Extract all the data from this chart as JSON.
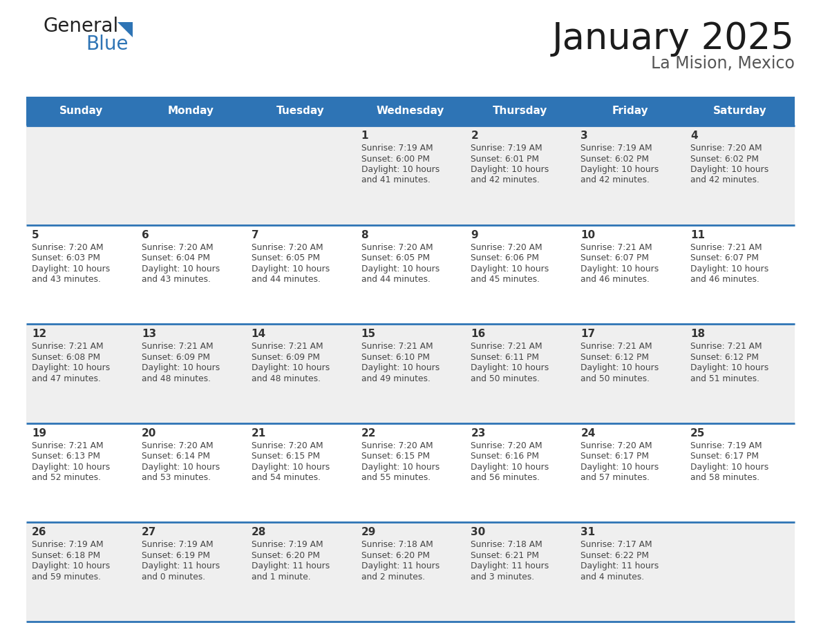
{
  "title": "January 2025",
  "subtitle": "La Mision, Mexico",
  "days_of_week": [
    "Sunday",
    "Monday",
    "Tuesday",
    "Wednesday",
    "Thursday",
    "Friday",
    "Saturday"
  ],
  "header_bg": "#2E74B5",
  "header_text": "#FFFFFF",
  "cell_bg_light": "#EFEFEF",
  "cell_bg_white": "#FFFFFF",
  "row_line_color": "#2E74B5",
  "cell_line_color": "#CCCCCC",
  "text_color": "#444444",
  "day_num_color": "#333333",
  "calendar_data": [
    [
      null,
      null,
      null,
      {
        "day": 1,
        "sunrise": "7:19 AM",
        "sunset": "6:00 PM",
        "daylight": "10 hours",
        "daylight2": "and 41 minutes."
      },
      {
        "day": 2,
        "sunrise": "7:19 AM",
        "sunset": "6:01 PM",
        "daylight": "10 hours",
        "daylight2": "and 42 minutes."
      },
      {
        "day": 3,
        "sunrise": "7:19 AM",
        "sunset": "6:02 PM",
        "daylight": "10 hours",
        "daylight2": "and 42 minutes."
      },
      {
        "day": 4,
        "sunrise": "7:20 AM",
        "sunset": "6:02 PM",
        "daylight": "10 hours",
        "daylight2": "and 42 minutes."
      }
    ],
    [
      {
        "day": 5,
        "sunrise": "7:20 AM",
        "sunset": "6:03 PM",
        "daylight": "10 hours",
        "daylight2": "and 43 minutes."
      },
      {
        "day": 6,
        "sunrise": "7:20 AM",
        "sunset": "6:04 PM",
        "daylight": "10 hours",
        "daylight2": "and 43 minutes."
      },
      {
        "day": 7,
        "sunrise": "7:20 AM",
        "sunset": "6:05 PM",
        "daylight": "10 hours",
        "daylight2": "and 44 minutes."
      },
      {
        "day": 8,
        "sunrise": "7:20 AM",
        "sunset": "6:05 PM",
        "daylight": "10 hours",
        "daylight2": "and 44 minutes."
      },
      {
        "day": 9,
        "sunrise": "7:20 AM",
        "sunset": "6:06 PM",
        "daylight": "10 hours",
        "daylight2": "and 45 minutes."
      },
      {
        "day": 10,
        "sunrise": "7:21 AM",
        "sunset": "6:07 PM",
        "daylight": "10 hours",
        "daylight2": "and 46 minutes."
      },
      {
        "day": 11,
        "sunrise": "7:21 AM",
        "sunset": "6:07 PM",
        "daylight": "10 hours",
        "daylight2": "and 46 minutes."
      }
    ],
    [
      {
        "day": 12,
        "sunrise": "7:21 AM",
        "sunset": "6:08 PM",
        "daylight": "10 hours",
        "daylight2": "and 47 minutes."
      },
      {
        "day": 13,
        "sunrise": "7:21 AM",
        "sunset": "6:09 PM",
        "daylight": "10 hours",
        "daylight2": "and 48 minutes."
      },
      {
        "day": 14,
        "sunrise": "7:21 AM",
        "sunset": "6:09 PM",
        "daylight": "10 hours",
        "daylight2": "and 48 minutes."
      },
      {
        "day": 15,
        "sunrise": "7:21 AM",
        "sunset": "6:10 PM",
        "daylight": "10 hours",
        "daylight2": "and 49 minutes."
      },
      {
        "day": 16,
        "sunrise": "7:21 AM",
        "sunset": "6:11 PM",
        "daylight": "10 hours",
        "daylight2": "and 50 minutes."
      },
      {
        "day": 17,
        "sunrise": "7:21 AM",
        "sunset": "6:12 PM",
        "daylight": "10 hours",
        "daylight2": "and 50 minutes."
      },
      {
        "day": 18,
        "sunrise": "7:21 AM",
        "sunset": "6:12 PM",
        "daylight": "10 hours",
        "daylight2": "and 51 minutes."
      }
    ],
    [
      {
        "day": 19,
        "sunrise": "7:21 AM",
        "sunset": "6:13 PM",
        "daylight": "10 hours",
        "daylight2": "and 52 minutes."
      },
      {
        "day": 20,
        "sunrise": "7:20 AM",
        "sunset": "6:14 PM",
        "daylight": "10 hours",
        "daylight2": "and 53 minutes."
      },
      {
        "day": 21,
        "sunrise": "7:20 AM",
        "sunset": "6:15 PM",
        "daylight": "10 hours",
        "daylight2": "and 54 minutes."
      },
      {
        "day": 22,
        "sunrise": "7:20 AM",
        "sunset": "6:15 PM",
        "daylight": "10 hours",
        "daylight2": "and 55 minutes."
      },
      {
        "day": 23,
        "sunrise": "7:20 AM",
        "sunset": "6:16 PM",
        "daylight": "10 hours",
        "daylight2": "and 56 minutes."
      },
      {
        "day": 24,
        "sunrise": "7:20 AM",
        "sunset": "6:17 PM",
        "daylight": "10 hours",
        "daylight2": "and 57 minutes."
      },
      {
        "day": 25,
        "sunrise": "7:19 AM",
        "sunset": "6:17 PM",
        "daylight": "10 hours",
        "daylight2": "and 58 minutes."
      }
    ],
    [
      {
        "day": 26,
        "sunrise": "7:19 AM",
        "sunset": "6:18 PM",
        "daylight": "10 hours",
        "daylight2": "and 59 minutes."
      },
      {
        "day": 27,
        "sunrise": "7:19 AM",
        "sunset": "6:19 PM",
        "daylight": "11 hours",
        "daylight2": "and 0 minutes."
      },
      {
        "day": 28,
        "sunrise": "7:19 AM",
        "sunset": "6:20 PM",
        "daylight": "11 hours",
        "daylight2": "and 1 minute."
      },
      {
        "day": 29,
        "sunrise": "7:18 AM",
        "sunset": "6:20 PM",
        "daylight": "11 hours",
        "daylight2": "and 2 minutes."
      },
      {
        "day": 30,
        "sunrise": "7:18 AM",
        "sunset": "6:21 PM",
        "daylight": "11 hours",
        "daylight2": "and 3 minutes."
      },
      {
        "day": 31,
        "sunrise": "7:17 AM",
        "sunset": "6:22 PM",
        "daylight": "11 hours",
        "daylight2": "and 4 minutes."
      },
      null
    ]
  ],
  "logo_general_color": "#222222",
  "logo_blue_color": "#2E74B5",
  "logo_triangle_color": "#2E74B5"
}
